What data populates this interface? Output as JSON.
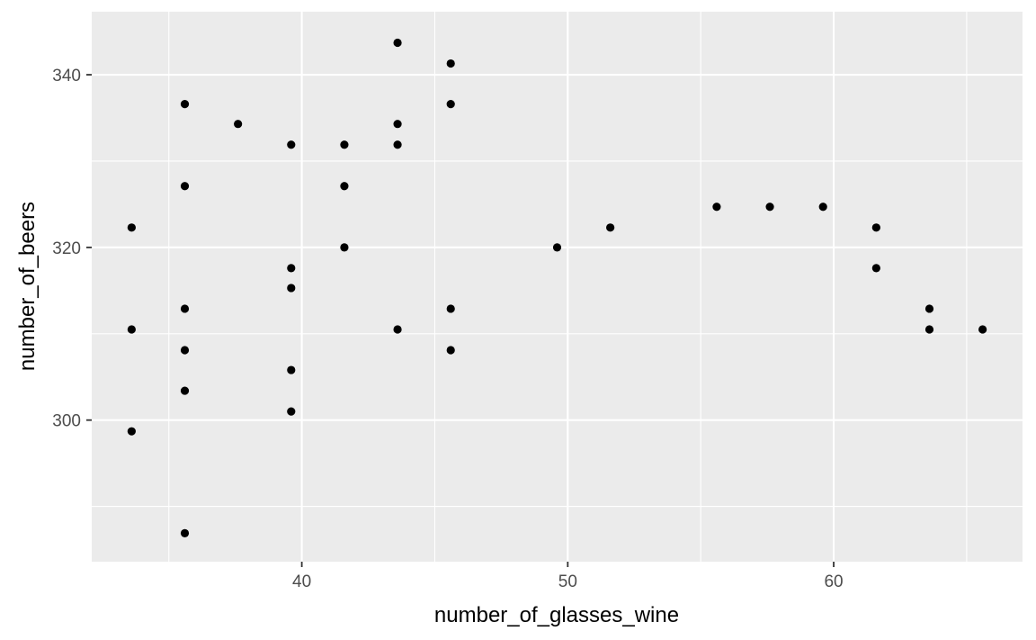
{
  "chart_data": {
    "type": "scatter",
    "title": "",
    "xlabel": "number_of_glasses_wine",
    "ylabel": "number_of_beers",
    "xlim": [
      32.1,
      67.1
    ],
    "ylim": [
      283.6,
      347.3
    ],
    "x_major_ticks": [
      40,
      50,
      60
    ],
    "x_minor_ticks": [
      35,
      45,
      55,
      65
    ],
    "y_major_ticks": [
      300,
      320,
      340
    ],
    "y_minor_ticks": [
      290,
      310,
      330
    ],
    "grid": true,
    "legend": "none",
    "colors": {
      "panel": "#ebebeb",
      "grid": "#ffffff",
      "point": "#000000",
      "tick_text": "#4d4d4d",
      "tick_mark": "#333333"
    },
    "points": [
      {
        "x": 33.6,
        "y": 298.7
      },
      {
        "x": 33.6,
        "y": 310.5
      },
      {
        "x": 33.6,
        "y": 322.3
      },
      {
        "x": 35.6,
        "y": 286.9
      },
      {
        "x": 35.6,
        "y": 303.4
      },
      {
        "x": 35.6,
        "y": 308.1
      },
      {
        "x": 35.6,
        "y": 312.9
      },
      {
        "x": 35.6,
        "y": 327.1
      },
      {
        "x": 35.6,
        "y": 336.6
      },
      {
        "x": 37.6,
        "y": 334.3
      },
      {
        "x": 39.6,
        "y": 301.0
      },
      {
        "x": 39.6,
        "y": 305.8
      },
      {
        "x": 39.6,
        "y": 315.3
      },
      {
        "x": 39.6,
        "y": 317.6
      },
      {
        "x": 39.6,
        "y": 331.9
      },
      {
        "x": 41.6,
        "y": 320.0
      },
      {
        "x": 41.6,
        "y": 327.1
      },
      {
        "x": 41.6,
        "y": 331.9
      },
      {
        "x": 43.6,
        "y": 310.5
      },
      {
        "x": 43.6,
        "y": 331.9
      },
      {
        "x": 43.6,
        "y": 334.3
      },
      {
        "x": 43.6,
        "y": 343.7
      },
      {
        "x": 45.6,
        "y": 308.1
      },
      {
        "x": 45.6,
        "y": 312.9
      },
      {
        "x": 45.6,
        "y": 336.6
      },
      {
        "x": 45.6,
        "y": 341.3
      },
      {
        "x": 49.6,
        "y": 320.0
      },
      {
        "x": 51.6,
        "y": 322.3
      },
      {
        "x": 55.6,
        "y": 324.7
      },
      {
        "x": 57.6,
        "y": 324.7
      },
      {
        "x": 59.6,
        "y": 324.7
      },
      {
        "x": 61.6,
        "y": 317.6
      },
      {
        "x": 61.6,
        "y": 322.3
      },
      {
        "x": 63.6,
        "y": 310.5
      },
      {
        "x": 63.6,
        "y": 312.9
      },
      {
        "x": 65.6,
        "y": 310.5
      }
    ]
  }
}
